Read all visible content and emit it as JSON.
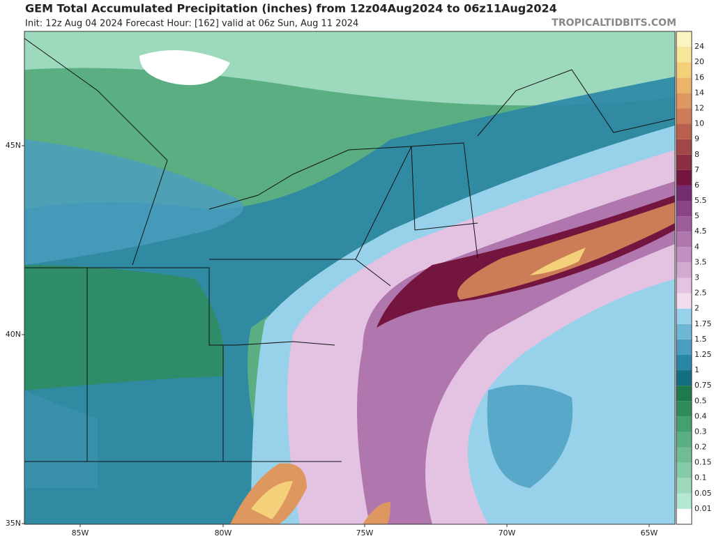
{
  "header": {
    "title": "GEM Total Accumulated Precipitation (inches) from 12z04Aug2024 to 06z11Aug2024",
    "subtitle": "Init: 12z Aug 04 2024   Forecast Hour: [162]   valid at 06z Sun, Aug 11 2024",
    "site": "TROPICALTIDBITS.COM"
  },
  "axes": {
    "lat": [
      "45N",
      "40N",
      "35N"
    ],
    "lon": [
      "85W",
      "80W",
      "75W",
      "70W",
      "65W"
    ]
  },
  "colorbar": {
    "levels": [
      "0.01",
      "0.05",
      "0.1",
      "0.15",
      "0.2",
      "0.3",
      "0.4",
      "0.5",
      "0.75",
      "1",
      "1.25",
      "1.5",
      "1.75",
      "2",
      "2.5",
      "3",
      "3.5",
      "4",
      "4.5",
      "5",
      "5.5",
      "6",
      "7",
      "8",
      "9",
      "10",
      "12",
      "14",
      "16",
      "20",
      "24"
    ],
    "colors": [
      "#ffffff",
      "#b4e8d0",
      "#9cd9bd",
      "#86cba9",
      "#70bd95",
      "#5aae82",
      "#44a06e",
      "#2f8c5a",
      "#1e7a4c",
      "#136e7f",
      "#2a86a5",
      "#4b9ec0",
      "#6fb7d6",
      "#97d2ea",
      "#f1dcef",
      "#e3c3e1",
      "#d3a9d1",
      "#c28fc1",
      "#b076ae",
      "#9c5d9a",
      "#884487",
      "#742d72",
      "#73153f",
      "#8b2d43",
      "#a24748",
      "#b9614e",
      "#cc7c56",
      "#de985f",
      "#eab56b",
      "#f4d07a",
      "#f7e59a",
      "#fbf3c0"
    ]
  }
}
